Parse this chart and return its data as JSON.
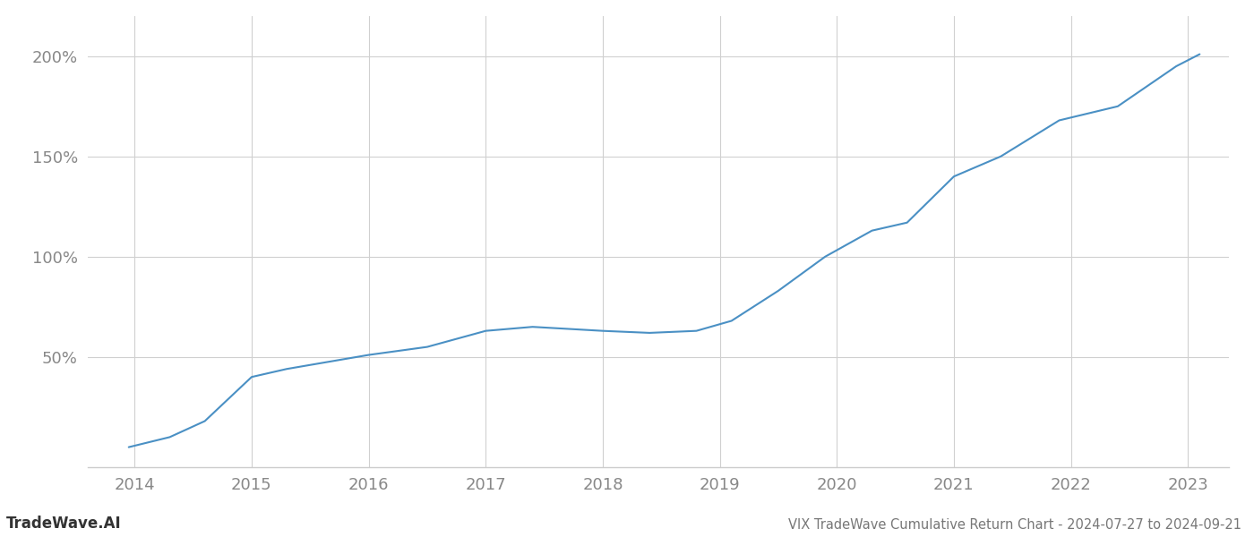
{
  "x_years": [
    2013.95,
    2014.3,
    2014.6,
    2015.0,
    2015.3,
    2016.0,
    2016.5,
    2017.0,
    2017.4,
    2018.0,
    2018.4,
    2018.8,
    2019.1,
    2019.5,
    2019.9,
    2020.3,
    2020.6,
    2021.0,
    2021.4,
    2021.9,
    2022.4,
    2022.9,
    2023.1
  ],
  "y_values": [
    5,
    10,
    18,
    40,
    44,
    51,
    55,
    63,
    65,
    63,
    62,
    63,
    68,
    83,
    100,
    113,
    117,
    140,
    150,
    168,
    175,
    195,
    201
  ],
  "line_color": "#4a90c4",
  "line_width": 1.5,
  "background_color": "#ffffff",
  "grid_color": "#d0d0d0",
  "title": "VIX TradeWave Cumulative Return Chart - 2024-07-27 to 2024-09-21",
  "watermark": "TradeWave.AI",
  "xlim": [
    2013.6,
    2023.35
  ],
  "ylim": [
    -5,
    220
  ],
  "yticks": [
    50,
    100,
    150,
    200
  ],
  "ytick_labels": [
    "50%",
    "100%",
    "150%",
    "200%"
  ],
  "xticks": [
    2014,
    2015,
    2016,
    2017,
    2018,
    2019,
    2020,
    2021,
    2022,
    2023
  ],
  "tick_color": "#888888",
  "title_color": "#777777",
  "watermark_color": "#333333",
  "spine_color": "#cccccc",
  "tick_fontsize": 13,
  "title_fontsize": 10.5
}
